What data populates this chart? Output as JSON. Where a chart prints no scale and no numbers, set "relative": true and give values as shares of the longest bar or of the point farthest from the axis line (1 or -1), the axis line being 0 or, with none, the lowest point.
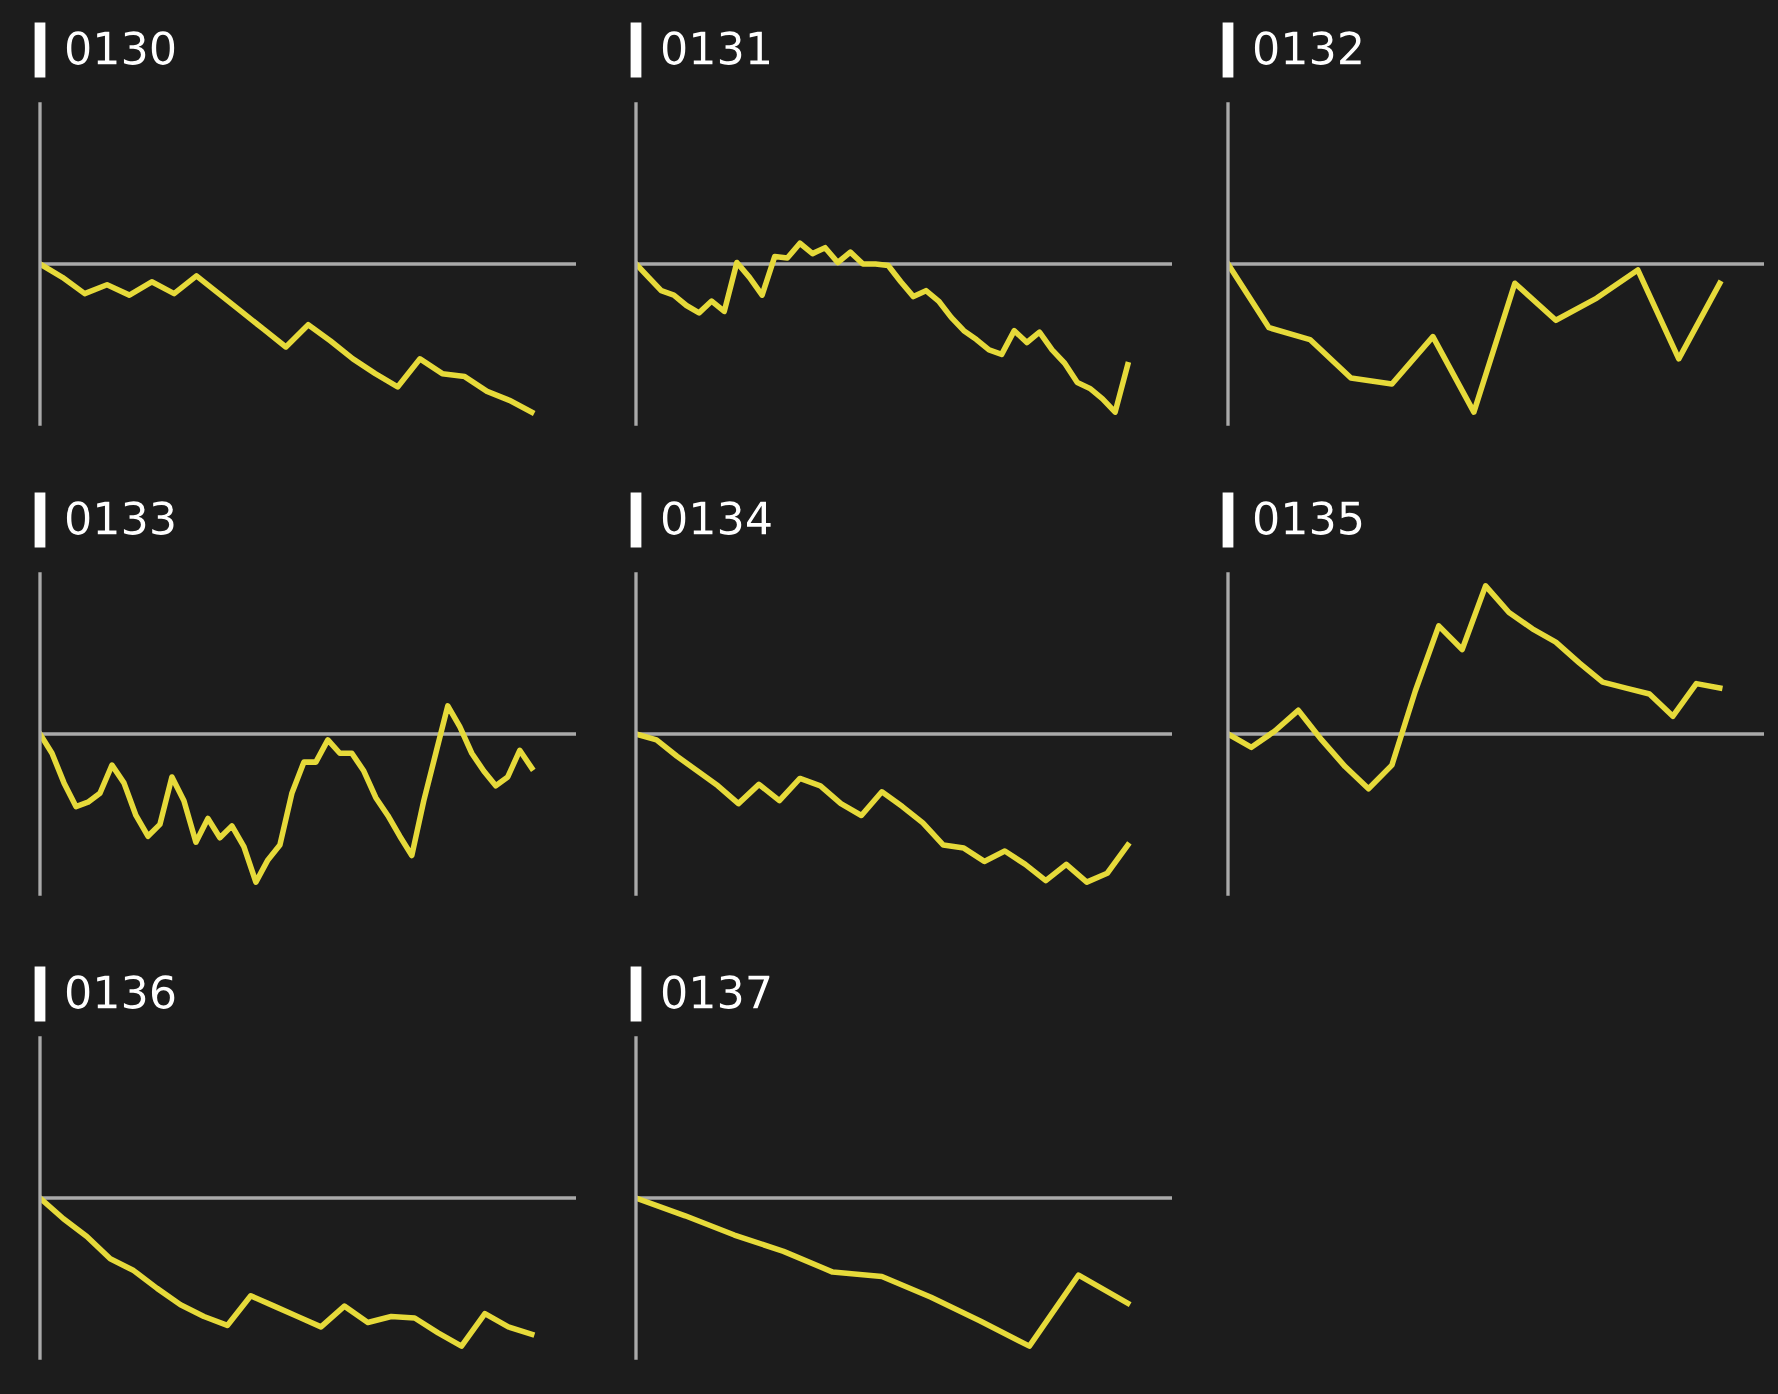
{
  "chart_data": [
    {
      "type": "line",
      "title": "0130",
      "relative": true,
      "categories": [
        null,
        null,
        null,
        null,
        null,
        null,
        null,
        null,
        null,
        null,
        null,
        null,
        null,
        null,
        null,
        null,
        null,
        null,
        null,
        null,
        null,
        null,
        null
      ],
      "series": [
        {
          "color": "#e6da3a",
          "values": [
            0,
            -0.09,
            -0.2,
            -0.14,
            -0.21,
            -0.12,
            -0.2,
            -0.08,
            -0.2,
            -0.32,
            -0.44,
            -0.56,
            -0.41,
            -0.52,
            -0.64,
            -0.74,
            -0.83,
            -0.64,
            -0.74,
            -0.76,
            -0.86,
            -0.92,
            -1
          ]
        }
      ]
    },
    {
      "type": "line",
      "title": "0131",
      "relative": true,
      "categories": [
        null,
        null,
        null,
        null,
        null,
        null,
        null,
        null,
        null,
        null,
        null,
        null,
        null,
        null,
        null,
        null,
        null,
        null,
        null,
        null,
        null,
        null,
        null,
        null,
        null,
        null,
        null,
        null,
        null,
        null,
        null,
        null,
        null,
        null,
        null,
        null,
        null,
        null,
        null,
        null
      ],
      "series": [
        {
          "color": "#e6da3a",
          "values": [
            0,
            -0.09,
            -0.18,
            -0.21,
            -0.28,
            -0.33,
            -0.25,
            -0.32,
            0.01,
            -0.09,
            -0.21,
            0.05,
            0.04,
            0.14,
            0.07,
            0.11,
            0.01,
            0.08,
            0,
            0,
            -0.01,
            -0.12,
            -0.22,
            -0.18,
            -0.25,
            -0.36,
            -0.45,
            -0.51,
            -0.58,
            -0.61,
            -0.45,
            -0.53,
            -0.46,
            -0.58,
            -0.67,
            -0.8,
            -0.84,
            -0.91,
            -1,
            -0.68
          ]
        }
      ]
    },
    {
      "type": "line",
      "title": "0132",
      "relative": true,
      "categories": [
        null,
        null,
        null,
        null,
        null,
        null,
        null,
        null,
        null,
        null,
        null,
        null,
        null
      ],
      "series": [
        {
          "color": "#e6da3a",
          "values": [
            0,
            -0.43,
            -0.51,
            -0.77,
            -0.81,
            -0.49,
            -1,
            -0.13,
            -0.38,
            -0.23,
            -0.04,
            -0.64,
            -0.13
          ]
        }
      ]
    },
    {
      "type": "line",
      "title": "0133",
      "relative": true,
      "categories": [
        null,
        null,
        null,
        null,
        null,
        null,
        null,
        null,
        null,
        null,
        null,
        null,
        null,
        null,
        null,
        null,
        null,
        null,
        null,
        null,
        null,
        null,
        null,
        null,
        null,
        null,
        null,
        null,
        null,
        null,
        null,
        null,
        null,
        null,
        null,
        null,
        null,
        null,
        null,
        null,
        null,
        null
      ],
      "series": [
        {
          "color": "#e6da3a",
          "values": [
            0,
            -0.13,
            -0.33,
            -0.49,
            -0.46,
            -0.4,
            -0.21,
            -0.33,
            -0.55,
            -0.69,
            -0.61,
            -0.29,
            -0.45,
            -0.73,
            -0.57,
            -0.7,
            -0.62,
            -0.76,
            -1,
            -0.85,
            -0.75,
            -0.4,
            -0.19,
            -0.19,
            -0.04,
            -0.13,
            -0.13,
            -0.25,
            -0.43,
            -0.55,
            -0.69,
            -0.82,
            -0.45,
            -0.13,
            0.19,
            0.05,
            -0.13,
            -0.25,
            -0.35,
            -0.29,
            -0.11,
            -0.23
          ]
        }
      ]
    },
    {
      "type": "line",
      "title": "0134",
      "relative": true,
      "categories": [
        null,
        null,
        null,
        null,
        null,
        null,
        null,
        null,
        null,
        null,
        null,
        null,
        null,
        null,
        null,
        null,
        null,
        null,
        null,
        null,
        null,
        null,
        null,
        null,
        null
      ],
      "series": [
        {
          "color": "#e6da3a",
          "values": [
            0,
            -0.04,
            -0.15,
            -0.25,
            -0.35,
            -0.47,
            -0.34,
            -0.45,
            -0.3,
            -0.35,
            -0.47,
            -0.55,
            -0.39,
            -0.49,
            -0.6,
            -0.75,
            -0.77,
            -0.86,
            -0.79,
            -0.88,
            -0.99,
            -0.88,
            -1,
            -0.94,
            -0.75
          ]
        }
      ]
    },
    {
      "type": "line",
      "title": "0135",
      "relative": true,
      "categories": [
        null,
        null,
        null,
        null,
        null,
        null,
        null,
        null,
        null,
        null,
        null,
        null,
        null,
        null,
        null,
        null,
        null,
        null,
        null,
        null,
        null,
        null
      ],
      "series": [
        {
          "color": "#e6da3a",
          "values": [
            0,
            -0.09,
            0.02,
            0.16,
            -0.04,
            -0.22,
            -0.37,
            -0.21,
            0.29,
            0.73,
            0.57,
            1,
            0.82,
            0.71,
            0.62,
            0.48,
            0.35,
            0.31,
            0.27,
            0.12,
            0.34,
            0.31
          ]
        }
      ]
    },
    {
      "type": "line",
      "title": "0136",
      "relative": true,
      "categories": [
        null,
        null,
        null,
        null,
        null,
        null,
        null,
        null,
        null,
        null,
        null,
        null,
        null,
        null,
        null,
        null,
        null,
        null,
        null,
        null,
        null,
        null
      ],
      "series": [
        {
          "color": "#e6da3a",
          "values": [
            0,
            -0.14,
            -0.26,
            -0.41,
            -0.49,
            -0.61,
            -0.72,
            -0.8,
            -0.86,
            -0.66,
            -0.73,
            -0.8,
            -0.87,
            -0.73,
            -0.84,
            -0.8,
            -0.81,
            -0.91,
            -1,
            -0.78,
            -0.87,
            -0.92
          ]
        }
      ]
    },
    {
      "type": "line",
      "title": "0137",
      "relative": true,
      "categories": [
        null,
        null,
        null,
        null,
        null,
        null,
        null,
        null,
        null,
        null,
        null
      ],
      "series": [
        {
          "color": "#e6da3a",
          "values": [
            0,
            -0.12,
            -0.25,
            -0.36,
            -0.5,
            -0.53,
            -0.67,
            -0.83,
            -1,
            -0.52,
            -0.71
          ]
        }
      ]
    }
  ]
}
